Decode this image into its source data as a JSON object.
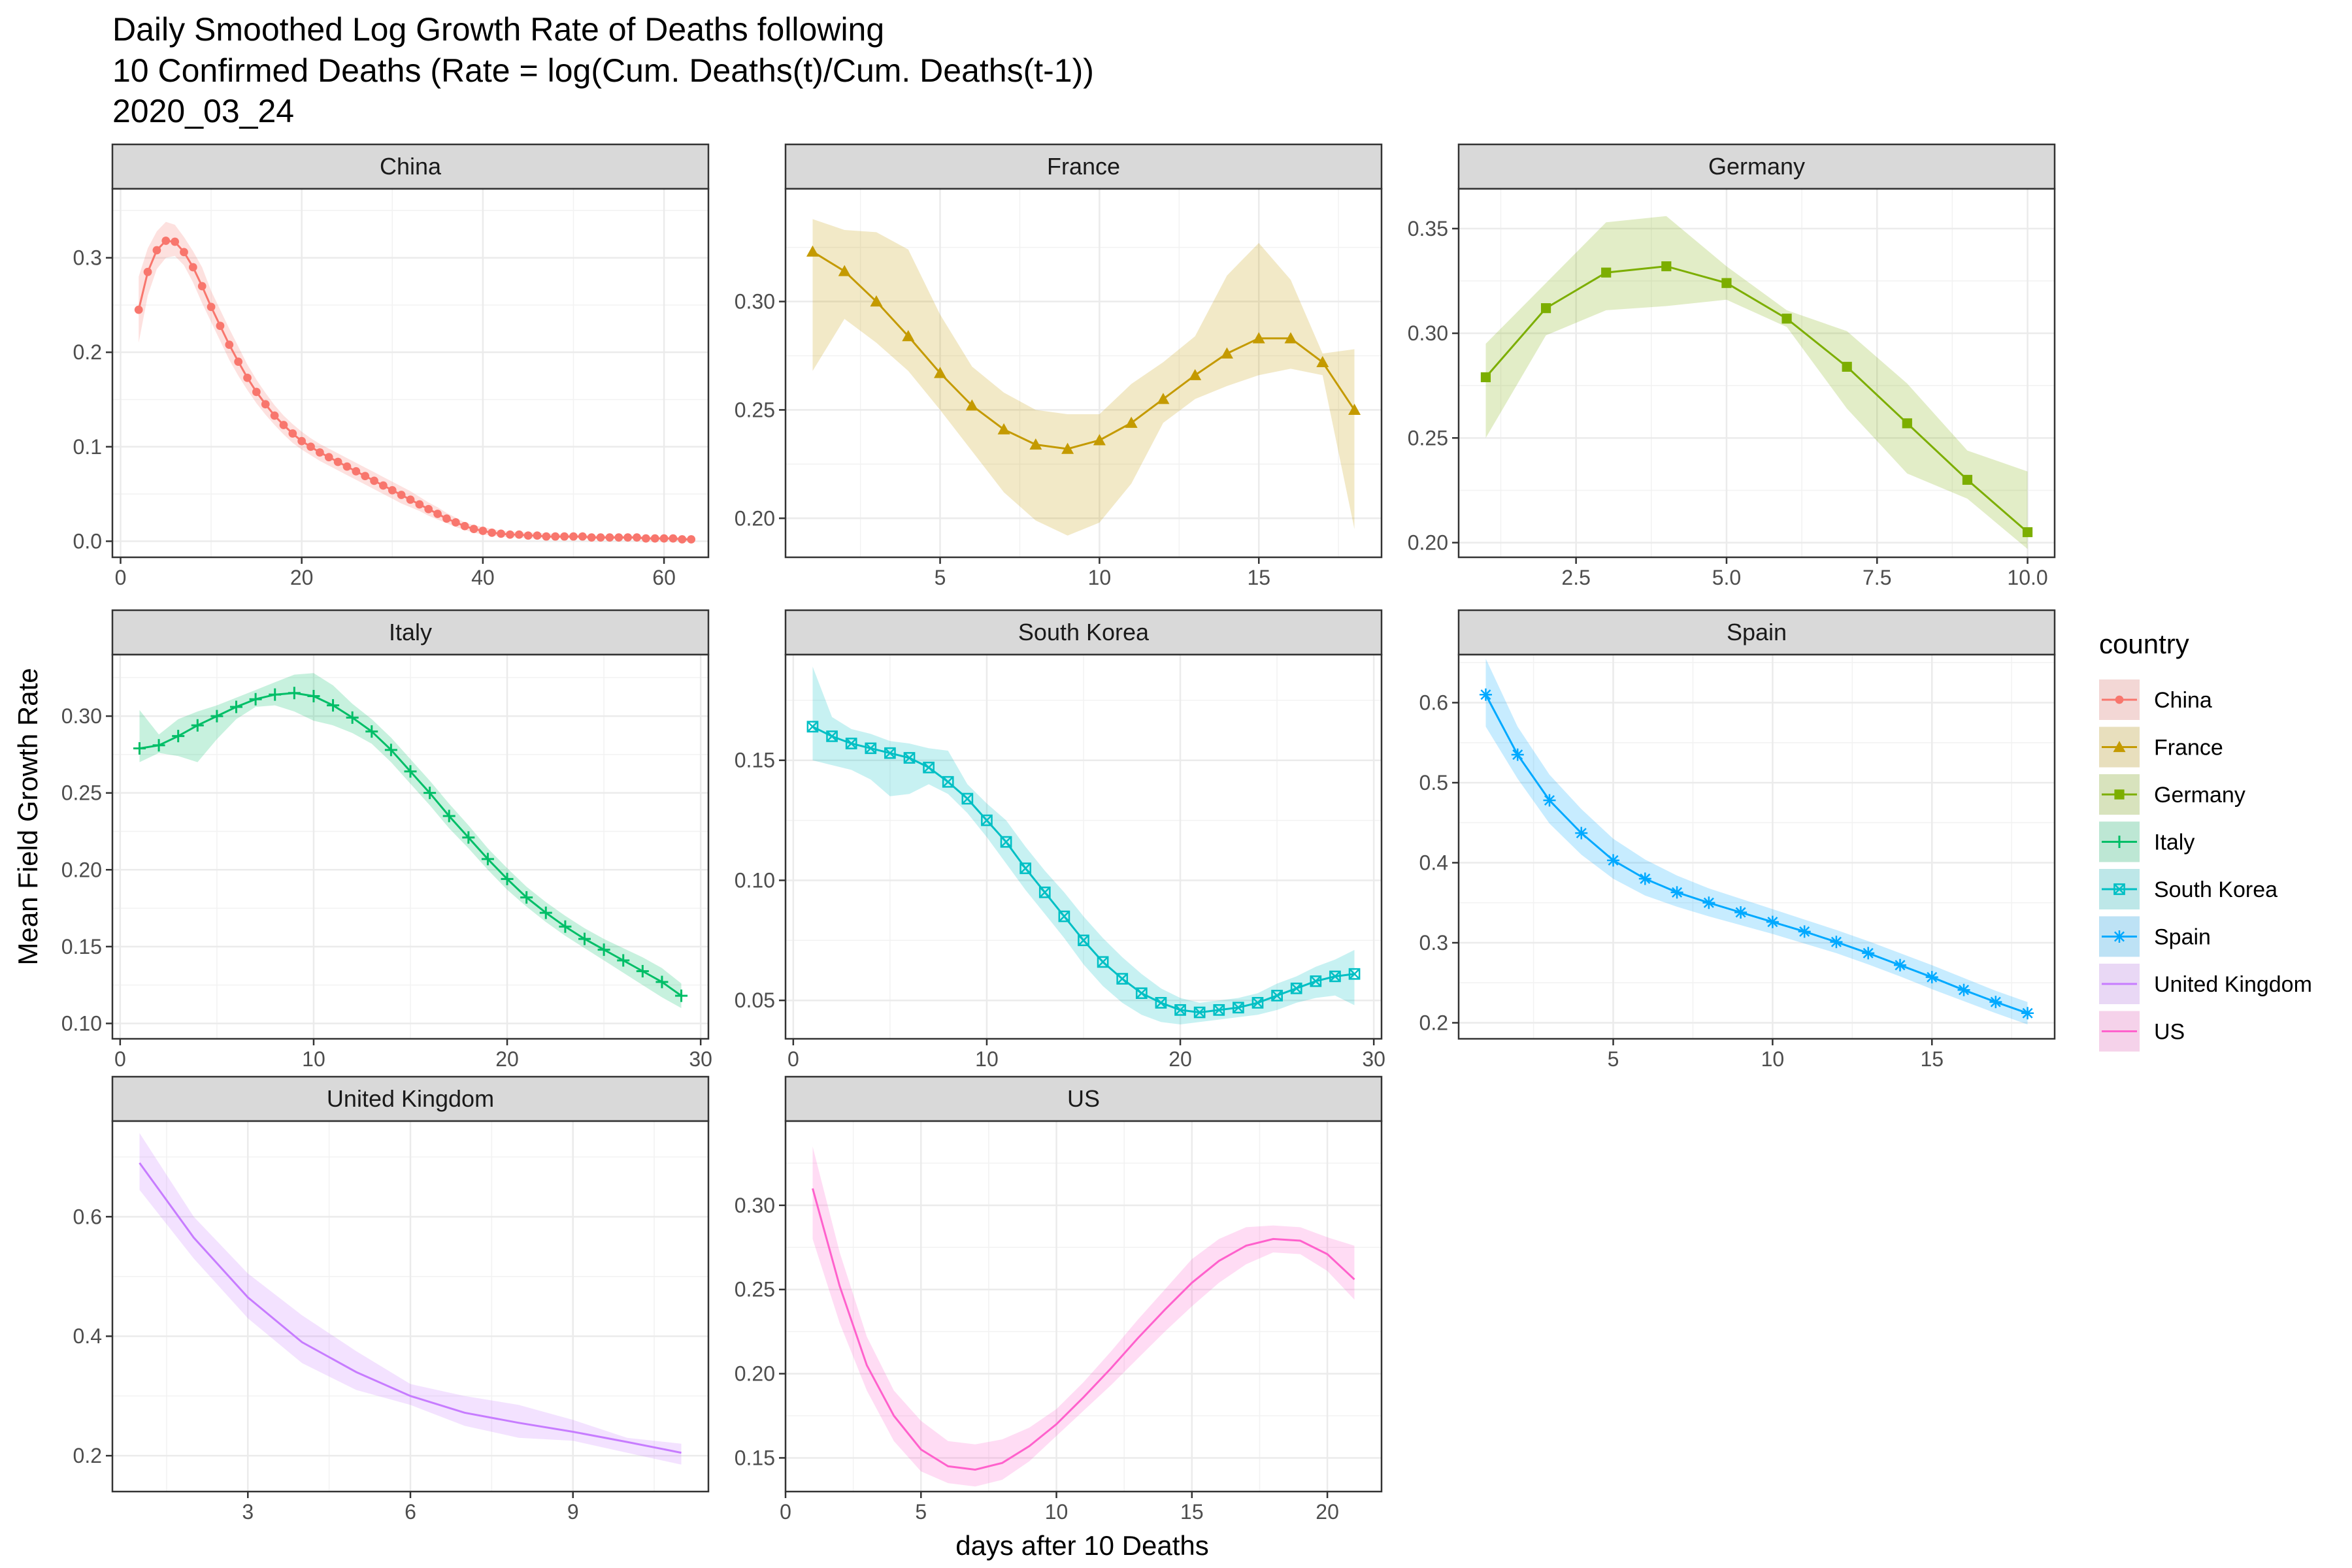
{
  "title_lines": [
    "Daily Smoothed Log Growth Rate of Deaths following",
    "10 Confirmed Deaths (Rate = log(Cum. Deaths(t)/Cum. Deaths(t-1))",
    "2020_03_24"
  ],
  "xlabel": "days after 10 Deaths",
  "ylabel": "Mean Field Growth Rate",
  "legend": {
    "title": "country",
    "items": [
      {
        "label": "China",
        "color": "#F8766D",
        "marker": "circle"
      },
      {
        "label": "France",
        "color": "#C49A00",
        "marker": "triangle"
      },
      {
        "label": "Germany",
        "color": "#7CAE00",
        "marker": "square"
      },
      {
        "label": "Italy",
        "color": "#00BE67",
        "marker": "plus"
      },
      {
        "label": "South Korea",
        "color": "#00BFC4",
        "marker": "boxx"
      },
      {
        "label": "Spain",
        "color": "#00A9FF",
        "marker": "asterisk"
      },
      {
        "label": "United Kingdom",
        "color": "#C77CFF",
        "marker": "none"
      },
      {
        "label": "US",
        "color": "#FF61CC",
        "marker": "none"
      }
    ]
  },
  "chart_data": [
    {
      "type": "line",
      "facet": "China",
      "color": "#F8766D",
      "marker": "circle",
      "markers": true,
      "xlim": [
        -0.9,
        64.9
      ],
      "ylim": [
        -0.017,
        0.373
      ],
      "xticks": [
        0,
        20,
        40,
        60
      ],
      "xtick_labels": [
        "0",
        "20",
        "40",
        "60"
      ],
      "yticks": [
        0.0,
        0.1,
        0.2,
        0.3
      ],
      "ytick_labels": [
        "0.0",
        "0.1",
        "0.2",
        "0.3"
      ],
      "x": [
        2,
        3,
        4,
        5,
        6,
        7,
        8,
        9,
        10,
        11,
        12,
        13,
        14,
        15,
        16,
        17,
        18,
        19,
        20,
        21,
        22,
        23,
        24,
        25,
        26,
        27,
        28,
        29,
        30,
        31,
        32,
        33,
        34,
        35,
        36,
        37,
        38,
        39,
        40,
        41,
        42,
        43,
        44,
        45,
        46,
        47,
        48,
        49,
        50,
        51,
        52,
        53,
        54,
        55,
        56,
        57,
        58,
        59,
        60,
        61,
        62,
        63
      ],
      "y": [
        0.245,
        0.285,
        0.308,
        0.318,
        0.317,
        0.306,
        0.29,
        0.27,
        0.248,
        0.228,
        0.208,
        0.19,
        0.173,
        0.158,
        0.145,
        0.133,
        0.123,
        0.114,
        0.106,
        0.1,
        0.094,
        0.089,
        0.084,
        0.079,
        0.074,
        0.069,
        0.064,
        0.059,
        0.054,
        0.049,
        0.044,
        0.039,
        0.034,
        0.029,
        0.024,
        0.02,
        0.016,
        0.013,
        0.011,
        0.009,
        0.008,
        0.007,
        0.007,
        0.006,
        0.006,
        0.005,
        0.005,
        0.005,
        0.005,
        0.005,
        0.004,
        0.004,
        0.004,
        0.004,
        0.004,
        0.004,
        0.003,
        0.003,
        0.003,
        0.003,
        0.002,
        0.002
      ],
      "lower": [
        0.21,
        0.26,
        0.288,
        0.3,
        0.302,
        0.292,
        0.274,
        0.252,
        0.232,
        0.212,
        0.192,
        0.175,
        0.16,
        0.146,
        0.134,
        0.123,
        0.113,
        0.104,
        0.097,
        0.091,
        0.085,
        0.08,
        0.075,
        0.07,
        0.065,
        0.06,
        0.055,
        0.05,
        0.045,
        0.04,
        0.036,
        0.032,
        0.027,
        0.023,
        0.019,
        0.015,
        0.012,
        0.009,
        0.007,
        0.006,
        0.005,
        0.004,
        0.004,
        0.003,
        0.003,
        0.003,
        0.003,
        0.003,
        0.003,
        0.003,
        0.002,
        0.002,
        0.002,
        0.002,
        0.002,
        0.002,
        0.001,
        0.001,
        0.001,
        0.001,
        0.0,
        0.0
      ],
      "upper": [
        0.28,
        0.31,
        0.328,
        0.338,
        0.335,
        0.322,
        0.307,
        0.29,
        0.265,
        0.245,
        0.225,
        0.206,
        0.187,
        0.171,
        0.157,
        0.144,
        0.133,
        0.124,
        0.116,
        0.109,
        0.103,
        0.098,
        0.093,
        0.088,
        0.083,
        0.078,
        0.073,
        0.068,
        0.063,
        0.058,
        0.053,
        0.047,
        0.041,
        0.036,
        0.03,
        0.025,
        0.02,
        0.017,
        0.015,
        0.013,
        0.011,
        0.01,
        0.01,
        0.009,
        0.009,
        0.008,
        0.008,
        0.007,
        0.007,
        0.007,
        0.006,
        0.006,
        0.006,
        0.006,
        0.006,
        0.006,
        0.005,
        0.005,
        0.005,
        0.005,
        0.004,
        0.004
      ]
    },
    {
      "type": "line",
      "facet": "France",
      "color": "#C49A00",
      "marker": "triangle",
      "markers": true,
      "xlim": [
        0.15,
        18.85
      ],
      "ylim": [
        0.182,
        0.352
      ],
      "xticks": [
        5,
        10,
        15
      ],
      "xtick_labels": [
        "5",
        "10",
        "15"
      ],
      "yticks": [
        0.2,
        0.25,
        0.3
      ],
      "ytick_labels": [
        "0.20",
        "0.25",
        "0.30"
      ],
      "x": [
        1,
        2,
        3,
        4,
        5,
        6,
        7,
        8,
        9,
        10,
        11,
        12,
        13,
        14,
        15,
        16,
        17,
        18
      ],
      "y": [
        0.323,
        0.314,
        0.3,
        0.284,
        0.267,
        0.252,
        0.241,
        0.234,
        0.232,
        0.236,
        0.244,
        0.255,
        0.266,
        0.276,
        0.283,
        0.283,
        0.272,
        0.25
      ],
      "lower": [
        0.268,
        0.292,
        0.281,
        0.268,
        0.25,
        0.231,
        0.212,
        0.199,
        0.192,
        0.198,
        0.216,
        0.244,
        0.255,
        0.261,
        0.266,
        0.269,
        0.266,
        0.195
      ],
      "upper": [
        0.338,
        0.333,
        0.332,
        0.324,
        0.294,
        0.27,
        0.258,
        0.25,
        0.248,
        0.248,
        0.262,
        0.272,
        0.284,
        0.312,
        0.327,
        0.31,
        0.276,
        0.278
      ]
    },
    {
      "type": "line",
      "facet": "Germany",
      "color": "#7CAE00",
      "marker": "square",
      "markers": true,
      "xlim": [
        0.55,
        10.45
      ],
      "ylim": [
        0.193,
        0.369
      ],
      "xticks": [
        2.5,
        5.0,
        7.5,
        10.0
      ],
      "xtick_labels": [
        "2.5",
        "5.0",
        "7.5",
        "10.0"
      ],
      "yticks": [
        0.2,
        0.25,
        0.3,
        0.35
      ],
      "ytick_labels": [
        "0.20",
        "0.25",
        "0.30",
        "0.35"
      ],
      "x": [
        1,
        2,
        3,
        4,
        5,
        6,
        7,
        8,
        9,
        10
      ],
      "y": [
        0.279,
        0.312,
        0.329,
        0.332,
        0.324,
        0.307,
        0.284,
        0.257,
        0.23,
        0.205
      ],
      "lower": [
        0.25,
        0.299,
        0.311,
        0.313,
        0.316,
        0.303,
        0.264,
        0.233,
        0.221,
        0.197
      ],
      "upper": [
        0.295,
        0.324,
        0.353,
        0.356,
        0.332,
        0.311,
        0.301,
        0.276,
        0.244,
        0.234
      ]
    },
    {
      "type": "line",
      "facet": "Italy",
      "color": "#00BE67",
      "marker": "plus",
      "markers": true,
      "xlim": [
        -0.4,
        30.4
      ],
      "ylim": [
        0.09,
        0.34
      ],
      "xticks": [
        0,
        10,
        20,
        30
      ],
      "xtick_labels": [
        "0",
        "10",
        "20",
        "30"
      ],
      "yticks": [
        0.1,
        0.15,
        0.2,
        0.25,
        0.3
      ],
      "ytick_labels": [
        "0.10",
        "0.15",
        "0.20",
        "0.25",
        "0.30"
      ],
      "x": [
        1,
        2,
        3,
        4,
        5,
        6,
        7,
        8,
        9,
        10,
        11,
        12,
        13,
        14,
        15,
        16,
        17,
        18,
        19,
        20,
        21,
        22,
        23,
        24,
        25,
        26,
        27,
        28,
        29
      ],
      "y": [
        0.279,
        0.281,
        0.287,
        0.294,
        0.3,
        0.306,
        0.311,
        0.314,
        0.315,
        0.313,
        0.307,
        0.299,
        0.29,
        0.278,
        0.264,
        0.25,
        0.235,
        0.221,
        0.207,
        0.194,
        0.182,
        0.172,
        0.163,
        0.155,
        0.148,
        0.141,
        0.134,
        0.127,
        0.118
      ],
      "lower": [
        0.27,
        0.276,
        0.274,
        0.27,
        0.285,
        0.298,
        0.306,
        0.307,
        0.303,
        0.297,
        0.294,
        0.289,
        0.282,
        0.27,
        0.256,
        0.242,
        0.227,
        0.214,
        0.2,
        0.187,
        0.176,
        0.166,
        0.157,
        0.149,
        0.141,
        0.133,
        0.125,
        0.117,
        0.11
      ],
      "upper": [
        0.304,
        0.288,
        0.298,
        0.303,
        0.307,
        0.312,
        0.317,
        0.322,
        0.327,
        0.328,
        0.32,
        0.308,
        0.298,
        0.286,
        0.272,
        0.258,
        0.243,
        0.229,
        0.214,
        0.201,
        0.189,
        0.179,
        0.17,
        0.162,
        0.155,
        0.149,
        0.143,
        0.136,
        0.126
      ]
    },
    {
      "type": "line",
      "facet": "South Korea",
      "color": "#00BFC4",
      "marker": "boxx",
      "markers": true,
      "xlim": [
        -0.4,
        30.4
      ],
      "ylim": [
        0.034,
        0.194
      ],
      "xticks": [
        0,
        10,
        20,
        30
      ],
      "xtick_labels": [
        "0",
        "10",
        "20",
        "30"
      ],
      "yticks": [
        0.05,
        0.1,
        0.15
      ],
      "ytick_labels": [
        "0.05",
        "0.10",
        "0.15"
      ],
      "x": [
        1,
        2,
        3,
        4,
        5,
        6,
        7,
        8,
        9,
        10,
        11,
        12,
        13,
        14,
        15,
        16,
        17,
        18,
        19,
        20,
        21,
        22,
        23,
        24,
        25,
        26,
        27,
        28,
        29
      ],
      "y": [
        0.164,
        0.16,
        0.157,
        0.155,
        0.153,
        0.151,
        0.147,
        0.141,
        0.134,
        0.125,
        0.116,
        0.105,
        0.095,
        0.085,
        0.075,
        0.066,
        0.059,
        0.053,
        0.049,
        0.046,
        0.045,
        0.046,
        0.047,
        0.049,
        0.052,
        0.055,
        0.058,
        0.06,
        0.061
      ],
      "lower": [
        0.15,
        0.148,
        0.146,
        0.142,
        0.135,
        0.136,
        0.14,
        0.136,
        0.128,
        0.118,
        0.107,
        0.096,
        0.086,
        0.076,
        0.065,
        0.056,
        0.049,
        0.044,
        0.041,
        0.04,
        0.041,
        0.042,
        0.043,
        0.044,
        0.046,
        0.049,
        0.051,
        0.052,
        0.048
      ],
      "upper": [
        0.189,
        0.168,
        0.163,
        0.161,
        0.158,
        0.157,
        0.155,
        0.154,
        0.14,
        0.132,
        0.125,
        0.114,
        0.104,
        0.095,
        0.085,
        0.076,
        0.068,
        0.061,
        0.055,
        0.051,
        0.049,
        0.05,
        0.051,
        0.053,
        0.057,
        0.06,
        0.064,
        0.067,
        0.071
      ]
    },
    {
      "type": "line",
      "facet": "Spain",
      "color": "#00A9FF",
      "marker": "asterisk",
      "markers": true,
      "xlim": [
        0.15,
        18.85
      ],
      "ylim": [
        0.18,
        0.66
      ],
      "xticks": [
        5,
        10,
        15
      ],
      "xtick_labels": [
        "5",
        "10",
        "15"
      ],
      "yticks": [
        0.2,
        0.3,
        0.4,
        0.5,
        0.6
      ],
      "ytick_labels": [
        "0.2",
        "0.3",
        "0.4",
        "0.5",
        "0.6"
      ],
      "x": [
        1,
        2,
        3,
        4,
        5,
        6,
        7,
        8,
        9,
        10,
        11,
        12,
        13,
        14,
        15,
        16,
        17,
        18
      ],
      "y": [
        0.61,
        0.535,
        0.478,
        0.437,
        0.403,
        0.38,
        0.363,
        0.35,
        0.338,
        0.326,
        0.314,
        0.301,
        0.287,
        0.272,
        0.257,
        0.241,
        0.226,
        0.212
      ],
      "lower": [
        0.57,
        0.505,
        0.449,
        0.41,
        0.38,
        0.359,
        0.345,
        0.333,
        0.322,
        0.311,
        0.299,
        0.287,
        0.273,
        0.258,
        0.242,
        0.227,
        0.212,
        0.198
      ],
      "upper": [
        0.655,
        0.57,
        0.51,
        0.467,
        0.43,
        0.404,
        0.384,
        0.368,
        0.355,
        0.342,
        0.329,
        0.316,
        0.302,
        0.287,
        0.272,
        0.256,
        0.24,
        0.226
      ]
    },
    {
      "type": "line",
      "facet": "United Kingdom",
      "color": "#C77CFF",
      "marker": "none",
      "markers": false,
      "xlim": [
        0.5,
        11.5
      ],
      "ylim": [
        0.14,
        0.76
      ],
      "xticks": [
        3,
        6,
        9
      ],
      "xtick_labels": [
        "3",
        "6",
        "9"
      ],
      "yticks": [
        0.2,
        0.4,
        0.6
      ],
      "ytick_labels": [
        "0.2",
        "0.4",
        "0.6"
      ],
      "x": [
        1,
        2,
        3,
        4,
        5,
        6,
        7,
        8,
        9,
        10,
        11
      ],
      "y": [
        0.69,
        0.565,
        0.465,
        0.39,
        0.34,
        0.3,
        0.272,
        0.255,
        0.24,
        0.223,
        0.205
      ],
      "lower": [
        0.645,
        0.53,
        0.43,
        0.355,
        0.31,
        0.285,
        0.25,
        0.23,
        0.225,
        0.205,
        0.185
      ],
      "upper": [
        0.74,
        0.6,
        0.505,
        0.435,
        0.375,
        0.32,
        0.3,
        0.285,
        0.26,
        0.23,
        0.22
      ]
    },
    {
      "type": "line",
      "facet": "US",
      "color": "#FF61CC",
      "marker": "none",
      "markers": false,
      "xlim": [
        0,
        22
      ],
      "ylim": [
        0.13,
        0.35
      ],
      "xticks": [
        0,
        5,
        10,
        15,
        20
      ],
      "xtick_labels": [
        "0",
        "5",
        "10",
        "15",
        "20"
      ],
      "yticks": [
        0.15,
        0.2,
        0.25,
        0.3
      ],
      "ytick_labels": [
        "0.15",
        "0.20",
        "0.25",
        "0.30"
      ],
      "x": [
        1,
        2,
        3,
        4,
        5,
        6,
        7,
        8,
        9,
        10,
        11,
        12,
        13,
        14,
        15,
        16,
        17,
        18,
        19,
        20,
        21
      ],
      "y": [
        0.31,
        0.252,
        0.205,
        0.175,
        0.155,
        0.145,
        0.143,
        0.147,
        0.157,
        0.17,
        0.186,
        0.203,
        0.221,
        0.238,
        0.254,
        0.267,
        0.276,
        0.28,
        0.279,
        0.271,
        0.256
      ],
      "lower": [
        0.28,
        0.23,
        0.19,
        0.16,
        0.142,
        0.135,
        0.133,
        0.137,
        0.148,
        0.163,
        0.178,
        0.193,
        0.209,
        0.225,
        0.24,
        0.254,
        0.265,
        0.272,
        0.271,
        0.261,
        0.244
      ],
      "upper": [
        0.335,
        0.272,
        0.222,
        0.19,
        0.172,
        0.16,
        0.158,
        0.161,
        0.168,
        0.179,
        0.195,
        0.213,
        0.232,
        0.25,
        0.268,
        0.28,
        0.287,
        0.288,
        0.287,
        0.281,
        0.276
      ]
    }
  ]
}
